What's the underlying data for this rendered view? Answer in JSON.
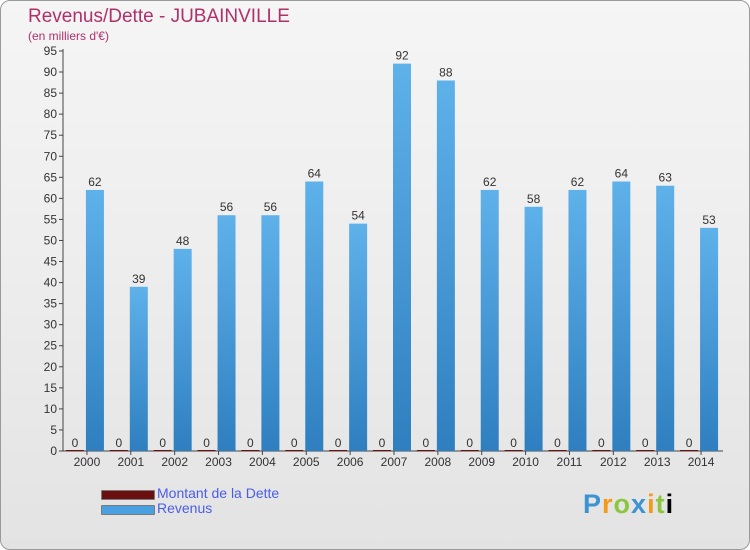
{
  "chart_data": {
    "type": "bar",
    "title": "Revenus/Dette - JUBAINVILLE",
    "subtitle": "(en milliers d'€)",
    "categories": [
      "2000",
      "2001",
      "2002",
      "2003",
      "2004",
      "2005",
      "2006",
      "2007",
      "2008",
      "2009",
      "2010",
      "2011",
      "2012",
      "2013",
      "2014"
    ],
    "series": [
      {
        "name": "Montant de la Dette",
        "color": "#6b0f0f",
        "values": [
          0,
          0,
          0,
          0,
          0,
          0,
          0,
          0,
          0,
          0,
          0,
          0,
          0,
          0,
          0
        ]
      },
      {
        "name": "Revenus",
        "color": "#4aa0e0",
        "values": [
          62,
          39,
          48,
          56,
          56,
          64,
          54,
          92,
          88,
          62,
          58,
          62,
          64,
          63,
          53
        ]
      }
    ],
    "ylim": [
      0,
      95
    ],
    "yticks": [
      0,
      5,
      10,
      15,
      20,
      25,
      30,
      35,
      40,
      45,
      50,
      55,
      60,
      65,
      70,
      75,
      80,
      85,
      90,
      95
    ],
    "grid": false,
    "legend_position": "bottom-left"
  },
  "logo": {
    "letters": [
      "P",
      "r",
      "o",
      "x",
      "i",
      "t",
      "i"
    ]
  }
}
